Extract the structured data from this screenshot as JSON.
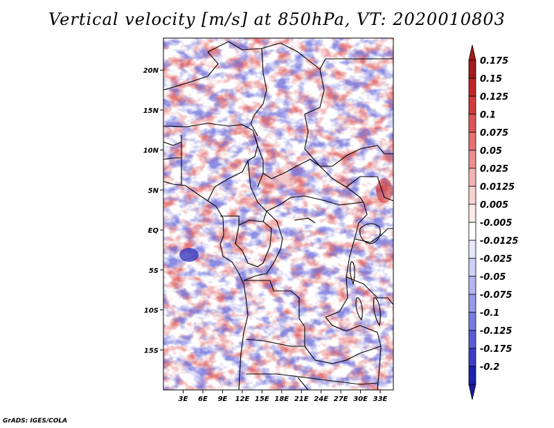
{
  "title": "Vertical velocity [m/s] at 850hPa, VT: 2020010803",
  "credit": "GrADS: IGES/COLA",
  "map": {
    "variable": "Vertical velocity",
    "units": "m/s",
    "level": "850hPa",
    "valid_time": "2020010803",
    "lon_range": [
      0,
      35
    ],
    "lat_range": [
      -20,
      24
    ],
    "lat_ticks": [
      {
        "value": 20,
        "label": "20N"
      },
      {
        "value": 15,
        "label": "15N"
      },
      {
        "value": 10,
        "label": "10N"
      },
      {
        "value": 5,
        "label": "5N"
      },
      {
        "value": 0,
        "label": "EQ"
      },
      {
        "value": -5,
        "label": "5S"
      },
      {
        "value": -10,
        "label": "10S"
      },
      {
        "value": -15,
        "label": "15S"
      }
    ],
    "lon_ticks": [
      {
        "value": 3,
        "label": "3E"
      },
      {
        "value": 6,
        "label": "6E"
      },
      {
        "value": 9,
        "label": "9E"
      },
      {
        "value": 12,
        "label": "12E"
      },
      {
        "value": 15,
        "label": "15E"
      },
      {
        "value": 18,
        "label": "18E"
      },
      {
        "value": 21,
        "label": "21E"
      },
      {
        "value": 24,
        "label": "24E"
      },
      {
        "value": 27,
        "label": "27E"
      },
      {
        "value": 30,
        "label": "30E"
      },
      {
        "value": 33,
        "label": "33E"
      }
    ]
  },
  "colorbar": {
    "levels": [
      {
        "label": "0.175",
        "color": "#a51a1a"
      },
      {
        "label": "0.15",
        "color": "#c02525"
      },
      {
        "label": "0.125",
        "color": "#d23b3b"
      },
      {
        "label": "0.1",
        "color": "#de5555"
      },
      {
        "label": "0.075",
        "color": "#e57272"
      },
      {
        "label": "0.05",
        "color": "#ec8f8f"
      },
      {
        "label": "0.025",
        "color": "#f3b3b3"
      },
      {
        "label": "0.0125",
        "color": "#f8d2d2"
      },
      {
        "label": "0.005",
        "color": "#fce9e9"
      },
      {
        "label": "-0.005",
        "color": "#ffffff"
      },
      {
        "label": "-0.0125",
        "color": "#e8e8fb"
      },
      {
        "label": "-0.025",
        "color": "#cfcff7"
      },
      {
        "label": "-0.05",
        "color": "#b4b4f1"
      },
      {
        "label": "-0.075",
        "color": "#9898ea"
      },
      {
        "label": "-0.1",
        "color": "#7a7ae2"
      },
      {
        "label": "-0.125",
        "color": "#5c5cd6"
      },
      {
        "label": "-0.175",
        "color": "#3d3dc6"
      },
      {
        "label": "-0.2",
        "color": "#2020b0"
      }
    ],
    "top_color": "#a51a1a",
    "bottom_color": "#1a1aa0"
  },
  "colors": {
    "positive": "#e05050",
    "negative": "#6060d8",
    "border": "#000000"
  }
}
